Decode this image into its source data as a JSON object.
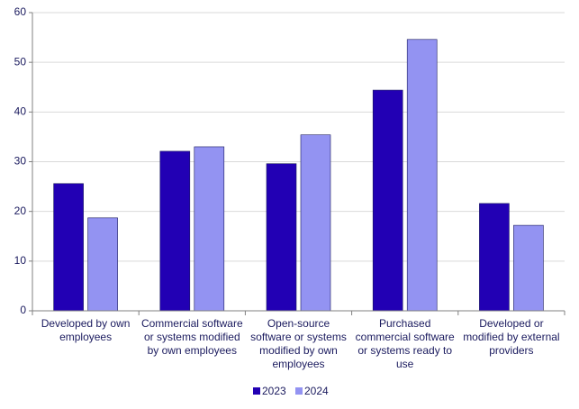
{
  "chart_data": {
    "type": "bar",
    "categories": [
      "Developed by own employees",
      "Commercial software or systems modified by own employees",
      "Open-source software or systems modified by own employees",
      "Purchased commercial software or systems ready to use",
      "Developed or modified by external providers"
    ],
    "series": [
      {
        "name": "2023",
        "color": "#2200b4",
        "values": [
          25.6,
          32.1,
          29.6,
          44.4,
          21.6
        ]
      },
      {
        "name": "2024",
        "color": "#9393f2",
        "values": [
          18.7,
          33.0,
          35.4,
          54.6,
          17.2
        ]
      }
    ],
    "ylim": [
      0,
      60
    ],
    "yticks": [
      0,
      10,
      20,
      30,
      40,
      50,
      60
    ],
    "grid": true,
    "legend": "bottom"
  }
}
